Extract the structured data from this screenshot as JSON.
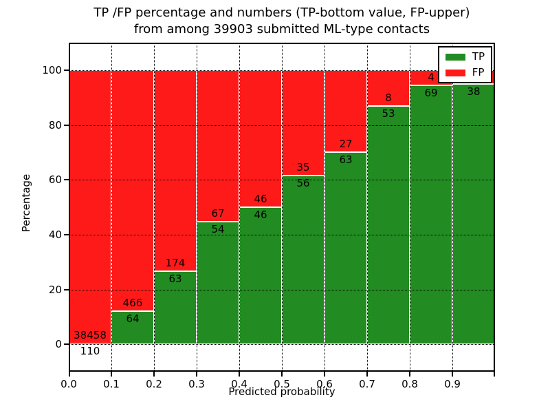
{
  "figure": {
    "title_line1": "TP /FP percentage and numbers (TP-bottom value, FP-upper)",
    "title_line2": "from among 39903 submitted ML-type contacts",
    "xlabel": "Predicted probability",
    "ylabel": "Percentage"
  },
  "legend": {
    "position": "upper right",
    "items": [
      {
        "label": "TP",
        "color": "#228b22"
      },
      {
        "label": "FP",
        "color": "#ff1a1a"
      }
    ]
  },
  "colors": {
    "tp_green": "#228b22",
    "fp_red": "#ff1a1a",
    "bar_edge": "#ffffff",
    "grid": "#000000",
    "frame": "#000000",
    "background": "#ffffff"
  },
  "chart_data": {
    "type": "bar",
    "stacked": true,
    "normalized": "percent",
    "title": "TP /FP percentage and numbers (TP-bottom value, FP-upper) from among 39903 submitted ML-type contacts",
    "xlabel": "Predicted probability",
    "ylabel": "Percentage",
    "xlim": [
      0,
      1
    ],
    "ylim": [
      -10,
      110
    ],
    "grid": "dotted",
    "legend_position": "upper right",
    "x_tick_labels": [
      "0.0",
      "0.1",
      "0.2",
      "0.3",
      "0.4",
      "0.5",
      "0.6",
      "0.7",
      "0.8",
      "0.9"
    ],
    "y_tick_values": [
      0,
      20,
      40,
      60,
      80,
      100
    ],
    "series": [
      {
        "name": "TP",
        "color": "#228b22",
        "position": "bottom"
      },
      {
        "name": "FP",
        "color": "#ff1a1a",
        "position": "top"
      }
    ],
    "bins": [
      {
        "range": [
          0.0,
          0.1
        ],
        "tp_count": 110,
        "fp_count": 38458,
        "tp_pct": 0.29
      },
      {
        "range": [
          0.1,
          0.2
        ],
        "tp_count": 64,
        "fp_count": 466,
        "tp_pct": 12.08
      },
      {
        "range": [
          0.2,
          0.3
        ],
        "tp_count": 63,
        "fp_count": 174,
        "tp_pct": 26.58
      },
      {
        "range": [
          0.3,
          0.4
        ],
        "tp_count": 54,
        "fp_count": 67,
        "tp_pct": 44.63
      },
      {
        "range": [
          0.4,
          0.5
        ],
        "tp_count": 46,
        "fp_count": 46,
        "tp_pct": 50.0
      },
      {
        "range": [
          0.5,
          0.6
        ],
        "tp_count": 56,
        "fp_count": 35,
        "tp_pct": 61.54
      },
      {
        "range": [
          0.6,
          0.7
        ],
        "tp_count": 63,
        "fp_count": 27,
        "tp_pct": 70.0
      },
      {
        "range": [
          0.7,
          0.8
        ],
        "tp_count": 53,
        "fp_count": 8,
        "tp_pct": 86.89
      },
      {
        "range": [
          0.8,
          0.9
        ],
        "tp_count": 69,
        "fp_count": 4,
        "tp_pct": 94.52
      },
      {
        "range": [
          0.9,
          1.0
        ],
        "tp_count": 38,
        "fp_count": null,
        "tp_pct": 95.0
      }
    ]
  }
}
